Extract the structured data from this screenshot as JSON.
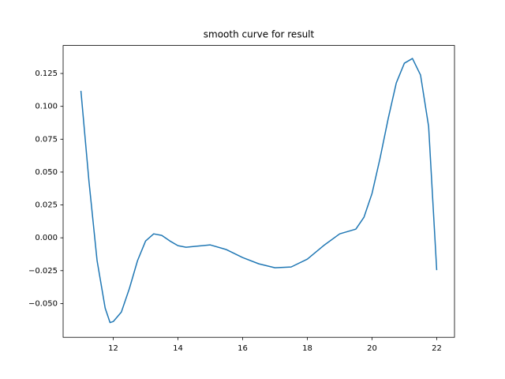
{
  "chart_data": {
    "type": "line",
    "title": "smooth curve for result",
    "x": [
      11,
      11.25,
      11.5,
      11.75,
      11.9,
      12,
      12.25,
      12.5,
      12.75,
      13,
      13.25,
      13.5,
      13.75,
      14,
      14.25,
      14.5,
      15,
      15.5,
      16,
      16.5,
      17,
      17.5,
      18,
      18.5,
      19,
      19.5,
      19.75,
      20,
      20.25,
      20.5,
      20.75,
      21,
      21.25,
      21.5,
      21.75,
      22
    ],
    "series": [
      {
        "color": "#1f77b4",
        "values": [
          0.1118,
          0.0427,
          -0.0174,
          -0.0535,
          -0.0645,
          -0.0637,
          -0.0565,
          -0.0385,
          -0.0174,
          -0.0024,
          0.003,
          0.0018,
          -0.0024,
          -0.006,
          -0.0072,
          -0.0066,
          -0.0054,
          -0.009,
          -0.015,
          -0.0198,
          -0.0228,
          -0.0222,
          -0.0162,
          -0.006,
          0.003,
          0.0066,
          0.0156,
          0.0337,
          0.0607,
          0.0907,
          0.1178,
          0.1328,
          0.1364,
          0.1238,
          0.0847,
          -0.0246
        ]
      }
    ],
    "xlim": [
      10.45,
      22.55
    ],
    "xticks": [
      12,
      14,
      16,
      18,
      20,
      22
    ],
    "ylim": [
      -0.0757,
      0.1463
    ],
    "yticks": [
      {
        "value": -0.05,
        "label": "−0.050"
      },
      {
        "value": -0.025,
        "label": "−0.025"
      },
      {
        "value": 0,
        "label": "0.000"
      },
      {
        "value": 0.025,
        "label": "0.025"
      },
      {
        "value": 0.05,
        "label": "0.050"
      },
      {
        "value": 0.075,
        "label": "0.075"
      },
      {
        "value": 0.1,
        "label": "0.100"
      },
      {
        "value": 0.125,
        "label": "0.125"
      }
    ]
  }
}
